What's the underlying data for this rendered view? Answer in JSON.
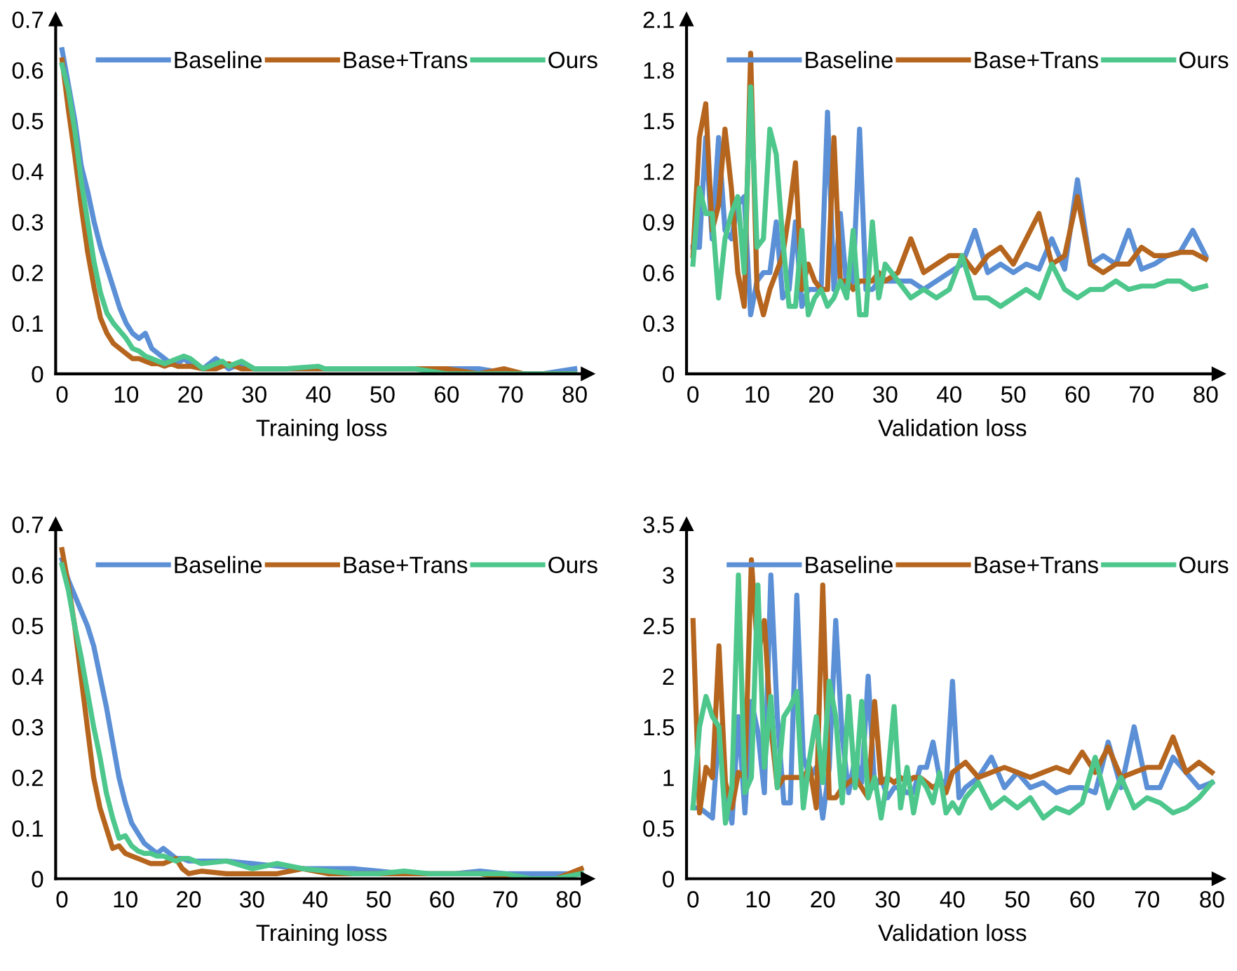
{
  "chart_data": [
    {
      "type": "line",
      "xlabel": "Training loss",
      "xlim": [
        -1,
        82
      ],
      "xticks": [
        0,
        10,
        20,
        30,
        40,
        50,
        60,
        70,
        80
      ],
      "ylim": [
        0,
        0.7
      ],
      "yticks": [
        0,
        0.1,
        0.2,
        0.3,
        0.4,
        0.5,
        0.6,
        0.7
      ],
      "grid": false,
      "legend": "top",
      "series": [
        {
          "name": "Baseline",
          "color": "#5b8fd6",
          "x": [
            0,
            1,
            2,
            3,
            4,
            5,
            6,
            7,
            8,
            9,
            10,
            11,
            12,
            13,
            14,
            15,
            16,
            17,
            18,
            19,
            20,
            22,
            24,
            26,
            28,
            30,
            35,
            40,
            45,
            50,
            55,
            60,
            65,
            70,
            75,
            80
          ],
          "values": [
            0.64,
            0.57,
            0.5,
            0.41,
            0.36,
            0.3,
            0.25,
            0.21,
            0.17,
            0.13,
            0.1,
            0.08,
            0.07,
            0.08,
            0.05,
            0.04,
            0.03,
            0.02,
            0.02,
            0.03,
            0.02,
            0.01,
            0.03,
            0.01,
            0.02,
            0.01,
            0.01,
            0.01,
            0.01,
            0.01,
            0.01,
            0.01,
            0.01,
            0,
            0,
            0.01
          ]
        },
        {
          "name": "Base+Trans",
          "color": "#b5651d",
          "x": [
            0,
            1,
            2,
            3,
            4,
            5,
            6,
            7,
            8,
            9,
            10,
            11,
            12,
            13,
            14,
            15,
            16,
            17,
            18,
            20,
            22,
            24,
            26,
            28,
            30,
            35,
            40,
            45,
            48,
            50,
            55,
            60,
            65,
            69,
            72,
            75,
            80
          ],
          "values": [
            0.62,
            0.52,
            0.43,
            0.33,
            0.24,
            0.17,
            0.11,
            0.08,
            0.06,
            0.05,
            0.04,
            0.03,
            0.03,
            0.025,
            0.02,
            0.02,
            0.015,
            0.02,
            0.015,
            0.015,
            0.01,
            0.01,
            0.02,
            0.01,
            0.01,
            0.01,
            0.01,
            0.01,
            0.01,
            0.01,
            0.01,
            0.01,
            0,
            0.01,
            0,
            0,
            0
          ]
        },
        {
          "name": "Ours",
          "color": "#4dc78c",
          "x": [
            0,
            1,
            2,
            3,
            4,
            5,
            6,
            7,
            8,
            9,
            10,
            11,
            12,
            13,
            14,
            15,
            16,
            18,
            19,
            20,
            21,
            22,
            24,
            25,
            26,
            27,
            28,
            30,
            35,
            40,
            41,
            45,
            50,
            51,
            55,
            60,
            65,
            70,
            75,
            80
          ],
          "values": [
            0.61,
            0.56,
            0.48,
            0.38,
            0.3,
            0.22,
            0.16,
            0.12,
            0.1,
            0.085,
            0.07,
            0.05,
            0.045,
            0.035,
            0.03,
            0.025,
            0.02,
            0.03,
            0.035,
            0.03,
            0.02,
            0.01,
            0.02,
            0.025,
            0.015,
            0.02,
            0.025,
            0.01,
            0.01,
            0.015,
            0.01,
            0.01,
            0.01,
            0.01,
            0.01,
            0,
            0,
            0,
            0,
            0
          ]
        }
      ]
    },
    {
      "type": "line",
      "xlabel": "Validation loss",
      "xlim": [
        -1,
        82
      ],
      "xticks": [
        0,
        10,
        20,
        30,
        40,
        50,
        60,
        70,
        80
      ],
      "ylim": [
        0,
        2.1
      ],
      "yticks": [
        0,
        0.3,
        0.6,
        0.9,
        1.2,
        1.5,
        1.8,
        2.1
      ],
      "grid": false,
      "legend": "top",
      "x": [
        0,
        1,
        2,
        3,
        4,
        5,
        6,
        7,
        8,
        9,
        10,
        11,
        12,
        13,
        14,
        15,
        16,
        17,
        18,
        19,
        20,
        21,
        22,
        23,
        24,
        25,
        26,
        27,
        28,
        29,
        30,
        32,
        34,
        36,
        38,
        40,
        42,
        44,
        46,
        48,
        50,
        52,
        54,
        56,
        58,
        60,
        62,
        64,
        66,
        68,
        70,
        72,
        74,
        76,
        78,
        80
      ],
      "series": [
        {
          "name": "Baseline",
          "color": "#5b8fd6",
          "values": [
            0.75,
            0.75,
            1.4,
            0.8,
            1.4,
            0.85,
            0.8,
            1.0,
            1.05,
            0.35,
            0.55,
            0.6,
            0.6,
            0.9,
            0.45,
            0.5,
            0.9,
            0.4,
            0.5,
            0.5,
            0.5,
            1.55,
            0.5,
            0.95,
            0.5,
            0.55,
            1.45,
            0.5,
            0.5,
            0.55,
            0.55,
            0.55,
            0.55,
            0.5,
            0.55,
            0.6,
            0.65,
            0.85,
            0.6,
            0.65,
            0.6,
            0.65,
            0.62,
            0.8,
            0.62,
            1.15,
            0.65,
            0.7,
            0.65,
            0.85,
            0.62,
            0.65,
            0.7,
            0.72,
            0.85,
            0.7
          ]
        },
        {
          "name": "Base+Trans",
          "color": "#b5651d",
          "values": [
            0.7,
            1.4,
            1.6,
            0.85,
            1.0,
            1.45,
            1.1,
            0.6,
            0.4,
            1.9,
            0.5,
            0.35,
            0.5,
            0.6,
            0.7,
            0.95,
            1.25,
            0.5,
            0.65,
            0.55,
            0.5,
            0.5,
            1.4,
            0.55,
            0.55,
            0.5,
            0.55,
            0.55,
            0.55,
            0.6,
            0.55,
            0.6,
            0.8,
            0.6,
            0.65,
            0.7,
            0.7,
            0.6,
            0.7,
            0.75,
            0.65,
            0.8,
            0.95,
            0.65,
            0.7,
            1.05,
            0.65,
            0.6,
            0.65,
            0.65,
            0.75,
            0.7,
            0.7,
            0.72,
            0.72,
            0.68
          ]
        },
        {
          "name": "Ours",
          "color": "#4dc78c",
          "values": [
            0.65,
            1.1,
            0.95,
            0.95,
            0.45,
            0.8,
            0.95,
            1.05,
            0.6,
            1.7,
            0.75,
            0.8,
            1.45,
            1.3,
            0.8,
            0.4,
            0.4,
            0.85,
            0.35,
            0.45,
            0.5,
            0.4,
            0.45,
            0.55,
            0.45,
            0.85,
            0.35,
            0.35,
            0.9,
            0.45,
            0.65,
            0.55,
            0.45,
            0.5,
            0.45,
            0.5,
            0.7,
            0.45,
            0.45,
            0.4,
            0.45,
            0.5,
            0.45,
            0.65,
            0.5,
            0.45,
            0.5,
            0.5,
            0.55,
            0.5,
            0.52,
            0.52,
            0.55,
            0.55,
            0.5,
            0.52
          ]
        }
      ]
    },
    {
      "type": "line",
      "xlabel": "Training loss",
      "xlim": [
        -1,
        83
      ],
      "xticks": [
        0,
        10,
        20,
        30,
        40,
        50,
        60,
        70,
        80
      ],
      "ylim": [
        0,
        0.7
      ],
      "yticks": [
        0,
        0.1,
        0.2,
        0.3,
        0.4,
        0.5,
        0.6,
        0.7
      ],
      "grid": false,
      "legend": "top",
      "x": [
        0,
        1,
        2,
        3,
        4,
        5,
        6,
        7,
        8,
        9,
        10,
        11,
        12,
        13,
        14,
        15,
        16,
        17,
        18,
        19,
        20,
        22,
        26,
        30,
        34,
        38,
        42,
        46,
        50,
        54,
        58,
        62,
        66,
        70,
        74,
        78,
        82
      ],
      "series": [
        {
          "name": "Baseline",
          "color": "#5b8fd6",
          "values": [
            0.63,
            0.59,
            0.56,
            0.53,
            0.5,
            0.46,
            0.4,
            0.34,
            0.27,
            0.2,
            0.15,
            0.11,
            0.09,
            0.07,
            0.06,
            0.05,
            0.06,
            0.05,
            0.04,
            0.04,
            0.035,
            0.035,
            0.035,
            0.03,
            0.025,
            0.02,
            0.02,
            0.02,
            0.015,
            0.01,
            0.01,
            0.01,
            0.015,
            0.01,
            0.01,
            0.01,
            0.01
          ]
        },
        {
          "name": "Base+Trans",
          "color": "#b5651d",
          "values": [
            0.65,
            0.58,
            0.5,
            0.4,
            0.3,
            0.2,
            0.14,
            0.1,
            0.06,
            0.065,
            0.05,
            0.045,
            0.04,
            0.035,
            0.03,
            0.03,
            0.03,
            0.035,
            0.04,
            0.02,
            0.01,
            0.015,
            0.01,
            0.01,
            0.01,
            0.02,
            0.01,
            0.01,
            0.01,
            0.01,
            0.01,
            0.01,
            0.01,
            0,
            0,
            0,
            0.02
          ]
        },
        {
          "name": "Ours",
          "color": "#4dc78c",
          "values": [
            0.62,
            0.57,
            0.5,
            0.44,
            0.37,
            0.3,
            0.24,
            0.17,
            0.12,
            0.08,
            0.085,
            0.065,
            0.055,
            0.05,
            0.05,
            0.045,
            0.045,
            0.04,
            0.035,
            0.04,
            0.04,
            0.03,
            0.035,
            0.02,
            0.03,
            0.02,
            0.015,
            0.01,
            0.01,
            0.015,
            0.01,
            0.01,
            0.01,
            0.01,
            0,
            0,
            0.01
          ]
        }
      ]
    },
    {
      "type": "line",
      "xlabel": "Validation loss",
      "xlim": [
        -1,
        81
      ],
      "xticks": [
        0,
        10,
        20,
        30,
        40,
        50,
        60,
        70,
        80
      ],
      "ylim": [
        0,
        3.5
      ],
      "yticks": [
        0,
        0.5,
        1,
        1.5,
        2,
        2.5,
        3,
        3.5
      ],
      "grid": false,
      "legend": "top",
      "x": [
        0,
        1,
        2,
        3,
        4,
        5,
        6,
        7,
        8,
        9,
        10,
        11,
        12,
        13,
        14,
        15,
        16,
        17,
        18,
        19,
        20,
        21,
        22,
        23,
        24,
        25,
        26,
        27,
        28,
        29,
        30,
        31,
        32,
        33,
        34,
        35,
        36,
        37,
        38,
        39,
        40,
        41,
        42,
        44,
        46,
        48,
        50,
        52,
        54,
        56,
        58,
        60,
        62,
        64,
        66,
        68,
        70,
        72,
        74,
        76,
        78,
        80
      ],
      "series": [
        {
          "name": "Baseline",
          "color": "#5b8fd6",
          "values": [
            0.7,
            0.7,
            0.65,
            0.6,
            1.5,
            0.9,
            0.55,
            1.6,
            0.65,
            1.75,
            1.45,
            0.85,
            3.0,
            1.6,
            0.75,
            0.75,
            2.8,
            1.2,
            1.0,
            1.1,
            0.6,
            1.1,
            2.55,
            1.4,
            0.85,
            1.2,
            0.95,
            2.0,
            0.9,
            1.0,
            0.8,
            0.9,
            0.9,
            0.85,
            0.85,
            1.1,
            1.1,
            1.35,
            1.0,
            0.9,
            1.95,
            0.8,
            0.9,
            1.0,
            1.2,
            0.9,
            1.05,
            0.9,
            0.95,
            0.85,
            0.9,
            0.9,
            0.85,
            1.35,
            0.9,
            1.5,
            0.9,
            0.9,
            1.2,
            1.05,
            0.9,
            0.95
          ]
        },
        {
          "name": "Base+Trans",
          "color": "#b5651d",
          "values": [
            2.55,
            0.65,
            1.1,
            1.0,
            2.3,
            0.95,
            0.7,
            1.05,
            1.0,
            3.15,
            2.2,
            2.55,
            1.5,
            0.9,
            1.0,
            1.0,
            1.0,
            1.0,
            1.1,
            0.7,
            2.9,
            0.8,
            0.8,
            0.9,
            0.95,
            1.0,
            0.9,
            0.8,
            1.75,
            0.95,
            1.0,
            0.95,
            1.0,
            0.95,
            1.0,
            1.0,
            0.95,
            0.9,
            0.95,
            0.85,
            1.05,
            1.1,
            1.15,
            1.0,
            1.05,
            1.1,
            1.05,
            1.0,
            1.05,
            1.1,
            1.05,
            1.25,
            1.05,
            1.3,
            1.0,
            1.05,
            1.1,
            1.1,
            1.4,
            1.05,
            1.15,
            1.05
          ]
        },
        {
          "name": "Ours",
          "color": "#4dc78c",
          "values": [
            0.7,
            1.5,
            1.8,
            1.6,
            1.5,
            0.55,
            0.9,
            3.0,
            0.85,
            1.0,
            2.9,
            1.1,
            1.8,
            0.9,
            1.6,
            1.7,
            1.85,
            0.7,
            1.2,
            1.6,
            0.95,
            1.95,
            1.6,
            0.75,
            1.8,
            0.9,
            1.75,
            0.8,
            1.0,
            0.6,
            1.0,
            1.7,
            0.7,
            1.1,
            0.65,
            1.0,
            0.9,
            0.75,
            1.05,
            0.65,
            0.75,
            0.65,
            0.8,
            0.95,
            0.7,
            0.8,
            0.7,
            0.8,
            0.6,
            0.7,
            0.65,
            0.75,
            1.2,
            0.7,
            1.0,
            0.7,
            0.8,
            0.75,
            0.65,
            0.7,
            0.8,
            0.95
          ]
        }
      ]
    }
  ]
}
